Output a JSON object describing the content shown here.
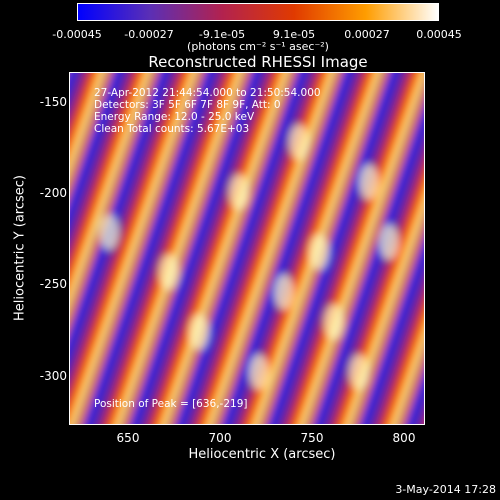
{
  "colorbar": {
    "ticks": [
      "-0.00045",
      "-0.00027",
      "-9.1e-05",
      "9.1e-05",
      "0.00027",
      "0.00045"
    ],
    "tick_values": [
      -0.00045,
      -0.00027,
      -9.1e-05,
      9.1e-05,
      0.00027,
      0.00045
    ],
    "units": "(photons cm⁻² s⁻¹ asec⁻²)",
    "colors": [
      "#0000ff",
      "#5b2fb5",
      "#b2224f",
      "#e03a00",
      "#ff9d00",
      "#ffffff"
    ]
  },
  "chart_data": {
    "type": "heatmap",
    "title": "Reconstructed RHESSI Image",
    "xlabel": "Heliocentric X (arcsec)",
    "ylabel": "Heliocentric Y (arcsec)",
    "x_ticks": [
      "650",
      "700",
      "750",
      "800"
    ],
    "x_tick_values": [
      650,
      700,
      750,
      800
    ],
    "y_ticks": [
      "-150",
      "-200",
      "-250",
      "-300"
    ],
    "y_tick_values": [
      -150,
      -200,
      -250,
      -300
    ],
    "xlim": [
      618,
      812
    ],
    "ylim": [
      -326,
      -133
    ],
    "value_range": [
      -0.00045,
      0.00045
    ],
    "description": "Diagonal bands of alternating high (yellow/white) and low (blue/purple) flux",
    "annotations": {
      "time_range": "27-Apr-2012 21:44:54.000 to 21:50:54.000",
      "detectors": "Detectors: 3F 5F 6F 7F 8F 9F, Att: 0",
      "energy": "Energy Range: 12.0 - 25.0 keV",
      "clean": "Clean     Total counts: 5.67E+03",
      "peak": "Position of Peak = [636,-219]"
    },
    "peak_position": [
      636,
      -219
    ]
  },
  "timestamp": "3-May-2014 17:28"
}
